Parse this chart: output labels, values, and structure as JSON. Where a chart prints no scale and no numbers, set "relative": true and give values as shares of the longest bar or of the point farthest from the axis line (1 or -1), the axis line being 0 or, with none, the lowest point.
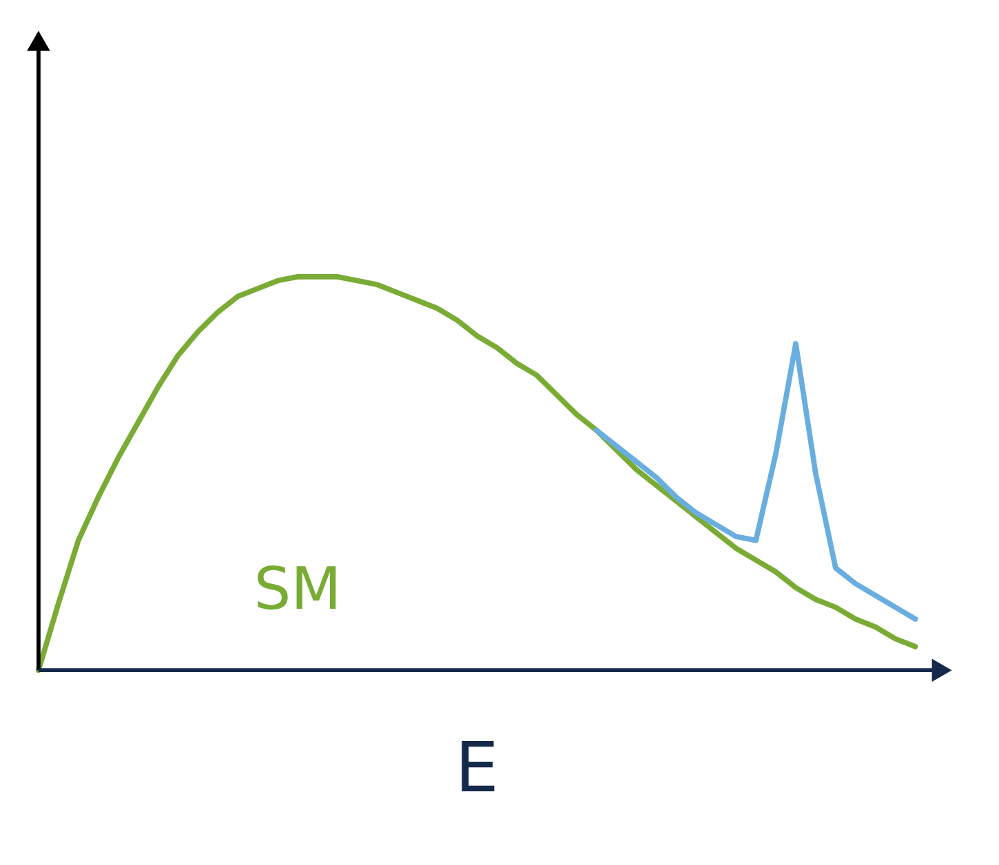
{
  "chart_data": {
    "type": "line",
    "relative": true,
    "xlabel": "E",
    "tick_labels": false,
    "grid": false,
    "marker": "none",
    "line_style": "solid",
    "categories": [
      null,
      null,
      null,
      null,
      null,
      null,
      null,
      null,
      null,
      null,
      null,
      null,
      null,
      null,
      null,
      null,
      null,
      null,
      null,
      null,
      null,
      null,
      null,
      null,
      null,
      null,
      null,
      null,
      null,
      null,
      null,
      null,
      null,
      null,
      null,
      null,
      null,
      null,
      null,
      null,
      null,
      null,
      null,
      null,
      null
    ],
    "series": [
      {
        "name": "SM",
        "color": "#7aab35",
        "values": [
          0,
          0.17,
          0.33,
          0.44,
          0.54,
          0.63,
          0.72,
          0.8,
          0.86,
          0.91,
          0.95,
          0.97,
          0.99,
          1.0,
          1.0,
          1.0,
          0.99,
          0.98,
          0.96,
          0.94,
          0.92,
          0.89,
          0.85,
          0.82,
          0.78,
          0.75,
          0.7,
          0.65,
          0.61,
          0.56,
          0.51,
          0.47,
          0.43,
          0.39,
          0.35,
          0.31,
          0.28,
          0.25,
          0.21,
          0.18,
          0.16,
          0.13,
          0.11,
          0.08,
          0.06
        ]
      },
      {
        "color": "#6aaee0",
        "values": [
          null,
          null,
          null,
          null,
          null,
          null,
          null,
          null,
          null,
          null,
          null,
          null,
          null,
          null,
          null,
          null,
          null,
          null,
          null,
          null,
          null,
          null,
          null,
          null,
          null,
          null,
          null,
          null,
          0.61,
          0.57,
          0.53,
          0.49,
          0.44,
          0.4,
          0.37,
          0.34,
          0.33,
          0.55,
          0.83,
          0.5,
          0.26,
          0.22,
          0.19,
          0.16,
          0.13
        ]
      }
    ]
  }
}
